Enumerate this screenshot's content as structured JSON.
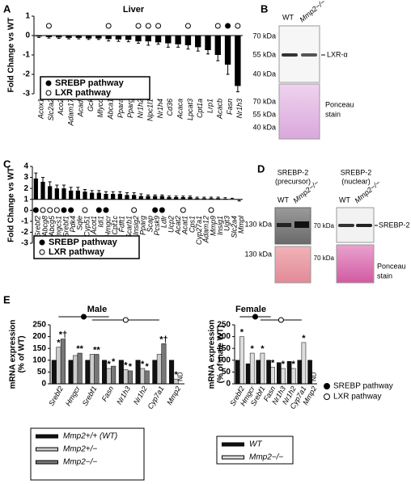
{
  "panel_labels": [
    "A",
    "B",
    "C",
    "D",
    "E"
  ],
  "chart_data": [
    {
      "type": "bar",
      "title": "Liver",
      "y_label": [
        "Fold Change vs WT"
      ],
      "categories": [
        "Acox1",
        "Slc2a2",
        "Aco2",
        "Adam17",
        "Acadl",
        "Gck",
        "Mlycd",
        "Abca1",
        "Ppara",
        "Pparg",
        "Nr1h2",
        "Npc1l1",
        "Nr1h4",
        "Cd36",
        "Acaca",
        "Lpcat3",
        "Cpt1a",
        "Lrp1",
        "Acacb",
        "Fasn",
        "Nr1h3"
      ],
      "values": [
        -0.05,
        -0.08,
        -0.1,
        -0.12,
        -0.12,
        -0.15,
        -0.15,
        -0.18,
        -0.2,
        -0.22,
        -0.3,
        -0.3,
        -0.35,
        -0.4,
        -0.45,
        -0.5,
        -0.6,
        -0.75,
        -1.0,
        -1.5,
        -2.6
      ],
      "errors": [
        0.05,
        0.05,
        0.05,
        0.05,
        0.05,
        0.05,
        0.05,
        0.1,
        0.1,
        0.1,
        0.1,
        0.2,
        0.1,
        0.2,
        0.15,
        0.2,
        0.2,
        0.2,
        0.3,
        0.5,
        0.3
      ],
      "color": "#000000",
      "ylim": [
        -3,
        1
      ],
      "yticks": [
        1,
        0,
        -1,
        -2,
        -3
      ],
      "legend": [
        {
          "name": "SREBP pathway",
          "marker": "filled",
          "at": [
            19
          ]
        },
        {
          "name": "LXR pathway",
          "marker": "open",
          "at": [
            1,
            7,
            10,
            11,
            12,
            15,
            18,
            20
          ]
        }
      ]
    },
    {
      "type": "bar",
      "y_label": [
        "Fold Change vs WT"
      ],
      "categories": [
        "Srebf2",
        "Abcg8",
        "Abcg5",
        "Hmgcs1",
        "Srebf1",
        "Pdk4",
        "Sqle",
        "Cyp51",
        "Acot1",
        "Idi1",
        "Hmgcr",
        "Cpt1c",
        "Fdft1",
        "Scarb1",
        "Insig2",
        "Pparg",
        "Scap",
        "Pcsk9",
        "Ldlr",
        "Ucp2",
        "Acat2",
        "Acat1",
        "Cps1",
        "Cyp27a1",
        "Adam12",
        "Mmp9",
        "Insig1",
        "Ugt3",
        "Slc2a4",
        "Mmpl"
      ],
      "values": [
        2.9,
        2.6,
        2.2,
        2.0,
        2.0,
        1.8,
        1.8,
        1.7,
        1.6,
        1.6,
        1.5,
        1.5,
        1.5,
        1.4,
        1.4,
        1.3,
        1.3,
        1.3,
        1.3,
        1.2,
        1.2,
        1.2,
        1.2,
        1.1,
        1.1,
        1.1,
        1.1,
        1.05,
        1.0,
        0.95
      ],
      "errors": [
        0.5,
        0.4,
        0.4,
        0.3,
        0.3,
        0.3,
        0.3,
        0.2,
        0.2,
        0.2,
        0.2,
        0.2,
        0.2,
        0.2,
        0.2,
        0.2,
        0.1,
        0.1,
        0.1,
        0.1,
        0.1,
        0.1,
        0.1,
        0.1,
        0.1,
        0.1,
        0.1,
        0.1,
        0.1,
        0.1
      ],
      "color": "#000000",
      "ylim": [
        -3,
        4
      ],
      "yticks": [
        4,
        3,
        2,
        1,
        0,
        -1,
        -2,
        -3
      ],
      "x_axis_at": 1,
      "legend": [
        {
          "name": "SREBP pathway",
          "marker": "filled",
          "at": [
            0,
            4,
            5,
            9,
            10,
            17,
            18
          ]
        },
        {
          "name": "LXR pathway",
          "marker": "open",
          "at": [
            1,
            2,
            3,
            7,
            14,
            21,
            25
          ]
        }
      ]
    },
    {
      "type": "grouped_bar",
      "title": "Male",
      "y_label": [
        "mRNA expression",
        "(% of WT)"
      ],
      "categories": [
        "Srebf2",
        "Hmgcr",
        "Srebf1",
        "Fasn",
        "Nr1h3",
        "Nr1h2",
        "Cyp7a1",
        "Mmp2"
      ],
      "series": [
        {
          "name": "Mmp2+/+ (WT)",
          "color": "#111111",
          "values": [
            100,
            100,
            100,
            100,
            100,
            100,
            100,
            100
          ],
          "annotations": [
            null,
            null,
            null,
            null,
            null,
            null,
            null,
            null
          ]
        },
        {
          "name": "Mmp2+/−",
          "color": "#cccccc",
          "values": [
            155,
            120,
            125,
            65,
            60,
            65,
            125,
            20
          ],
          "annotations": [
            "*",
            null,
            null,
            "*",
            "*",
            "*",
            null,
            "*"
          ]
        },
        {
          "name": "Mmp2−/−",
          "color": "#777777",
          "values": [
            190,
            130,
            125,
            75,
            55,
            55,
            170,
            null
          ],
          "annotations": [
            "*†",
            "**",
            "**",
            "*",
            "*",
            "*",
            "*†",
            "ND"
          ]
        }
      ],
      "ylim": [
        0,
        250
      ],
      "yticks": [
        0,
        50,
        100,
        150,
        200,
        250
      ],
      "pathways": [
        {
          "marker": "filled",
          "span": [
            0,
            3
          ]
        },
        {
          "marker": "open",
          "span": [
            2,
            6
          ]
        }
      ]
    },
    {
      "type": "grouped_bar",
      "title": "Female",
      "y_label": [
        "mRNA expression",
        "(% of male WT)"
      ],
      "categories": [
        "Srebf2",
        "Hmgcr",
        "Srebf1",
        "Fasn",
        "Nr1h3",
        "Nr1h2",
        "Cyp7a1",
        "Mmp2"
      ],
      "series": [
        {
          "name": "WT",
          "color": "#111111",
          "values": [
            100,
            85,
            100,
            100,
            90,
            95,
            100,
            100
          ],
          "annotations": [
            null,
            null,
            null,
            null,
            null,
            null,
            null,
            null
          ]
        },
        {
          "name": "Mmp2−/−",
          "color": "#dddddd",
          "values": [
            200,
            130,
            130,
            70,
            65,
            65,
            175,
            null
          ],
          "annotations": [
            "*",
            "*",
            "*",
            "*",
            "*",
            "*",
            "*",
            "ND"
          ]
        }
      ],
      "ylim": [
        0,
        250
      ],
      "yticks": [
        0,
        50,
        100,
        150,
        200,
        250
      ],
      "pathways": [
        {
          "marker": "filled",
          "span": [
            0,
            3
          ]
        },
        {
          "marker": "open",
          "span": [
            2,
            6
          ]
        }
      ],
      "pathway_legend": [
        {
          "name": "SREBP pathway",
          "marker": "filled"
        },
        {
          "name": "LXR pathway",
          "marker": "open"
        }
      ]
    }
  ],
  "blots": {
    "B": {
      "lanes": [
        "WT",
        "Mmp2−/−"
      ],
      "markers": [
        "70 kDa",
        "55 kDa",
        "40 kDa"
      ],
      "band": "LXR-α",
      "stain_markers": [
        "70 kDa",
        "55 kDa",
        "40 kDa"
      ],
      "stain": [
        "Ponceau",
        "stain"
      ]
    },
    "D": {
      "precursor": {
        "title": [
          "SREBP-2",
          "(precursor)"
        ],
        "lanes": [
          "WT",
          "Mmp2−/−"
        ],
        "marker": "130 kDa",
        "stain_marker": "130 kDa"
      },
      "nuclear": {
        "title": [
          "SREBP-2",
          "(nuclear)"
        ],
        "lanes": [
          "WT",
          "Mmp2−/−"
        ],
        "marker": "70 kDa",
        "band": "SREBP-2",
        "stain_marker": "70 kDa",
        "stain": [
          "Ponceau",
          "stain"
        ]
      }
    }
  }
}
